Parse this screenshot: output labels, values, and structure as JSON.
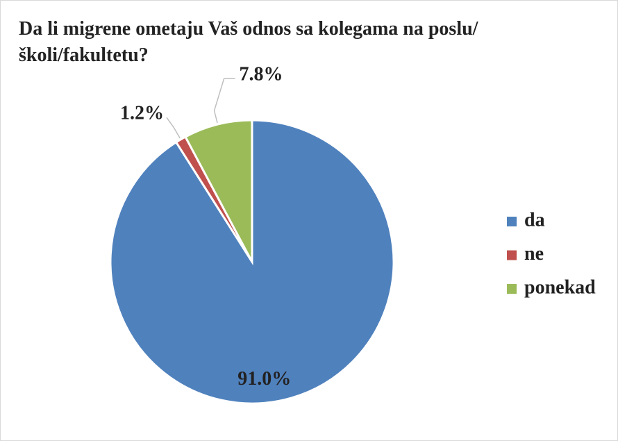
{
  "chart_data": {
    "type": "pie",
    "title": "Da li migrene ometaju Vaš odnos sa kolegama na poslu/školi/fakultetu?",
    "categories": [
      "da",
      "ne",
      "ponekad"
    ],
    "values": [
      91.0,
      1.2,
      7.8
    ],
    "value_labels": [
      "91.0%",
      "1.2%",
      "7.8%"
    ],
    "colors": [
      "#4f81bd",
      "#c0504d",
      "#9bbb59"
    ],
    "legend": "right"
  }
}
